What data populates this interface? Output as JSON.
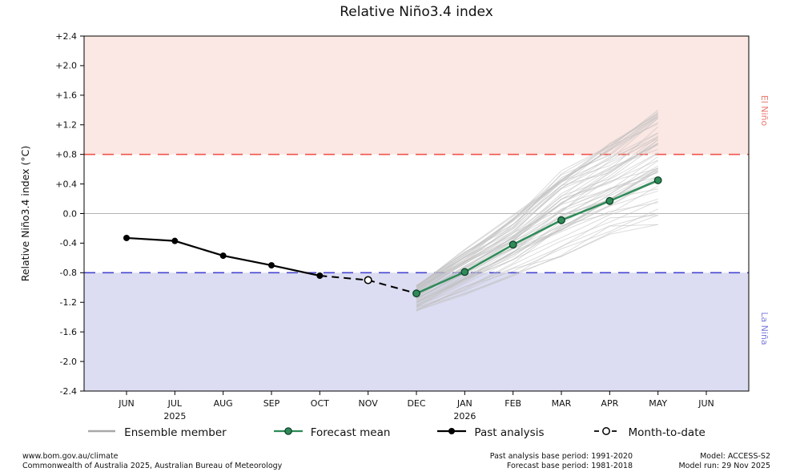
{
  "title": "Relative Niño3.4 index",
  "y_axis": {
    "label": "Relative Niño3.4 index (°C)",
    "tick_labels": [
      "+2.4",
      "+2.0",
      "+1.6",
      "+1.2",
      "+0.8",
      "+0.4",
      "0.0",
      "-0.4",
      "-0.8",
      "-1.2",
      "-1.6",
      "-2.0",
      "-2.4"
    ],
    "min": -2.4,
    "max": 2.4,
    "step": 0.4
  },
  "x_axis": {
    "month_labels": [
      "JUN",
      "JUL",
      "AUG",
      "SEP",
      "OCT",
      "NOV",
      "DEC",
      "JAN",
      "FEB",
      "MAR",
      "APR",
      "MAY",
      "JUN"
    ],
    "year_labels": [
      {
        "text": "2025",
        "month_index": 1
      },
      {
        "text": "2026",
        "month_index": 7
      }
    ]
  },
  "regions": {
    "el_nino": {
      "label": "El Niño",
      "threshold": 0.8,
      "fill": "#fbe7e3",
      "line": "#f0544c",
      "label_color": "#e8776b"
    },
    "la_nina": {
      "label": "La Niña",
      "threshold": -0.8,
      "fill": "#dcddf2",
      "line": "#4646d2",
      "label_color": "#7b7bda"
    }
  },
  "chart_data": {
    "type": "line",
    "title": "Relative Niño3.4 index",
    "ylabel": "Relative Niño3.4 index (°C)",
    "ylim": [
      -2.4,
      2.4
    ],
    "x_categories": [
      "JUN",
      "JUL",
      "AUG",
      "SEP",
      "OCT",
      "NOV",
      "DEC",
      "JAN",
      "FEB",
      "MAR",
      "APR",
      "MAY",
      "JUN"
    ],
    "zero_line_color": "#b3b3b3",
    "series": [
      {
        "name": "Past analysis",
        "months": [
          "JUN",
          "JUL",
          "AUG",
          "SEP",
          "OCT"
        ],
        "month_indices": [
          0,
          1,
          2,
          3,
          4
        ],
        "values": [
          -0.33,
          -0.37,
          -0.57,
          -0.7,
          -0.84
        ],
        "color": "#000000",
        "style": "solid-line-filled-markers"
      },
      {
        "name": "Month-to-date",
        "months": [
          "NOV"
        ],
        "month_indices": [
          5
        ],
        "values": [
          -0.9
        ],
        "color": "#000000",
        "style": "dashed-connector-open-marker"
      },
      {
        "name": "Forecast mean",
        "months": [
          "DEC",
          "JAN",
          "FEB",
          "MAR",
          "APR",
          "MAY"
        ],
        "month_indices": [
          6,
          7,
          8,
          9,
          10,
          11
        ],
        "values": [
          -1.08,
          -0.79,
          -0.42,
          -0.09,
          0.17,
          0.45
        ],
        "color": "#2e8b57",
        "marker_edge": "#0b3b24",
        "style": "solid-line-filled-markers"
      }
    ],
    "ensemble": {
      "name": "Ensemble member",
      "color": "#c0c0c0",
      "count": 60,
      "month_indices": [
        6,
        7,
        8,
        9,
        10,
        11
      ],
      "envelope_min": [
        -1.36,
        -1.12,
        -0.85,
        -0.58,
        -0.32,
        -0.15
      ],
      "envelope_max": [
        -0.93,
        -0.47,
        -0.02,
        0.58,
        0.95,
        1.4
      ],
      "seed": 13
    }
  },
  "legend": {
    "items": [
      {
        "label": "Ensemble member"
      },
      {
        "label": "Forecast mean"
      },
      {
        "label": "Past analysis"
      },
      {
        "label": "Month-to-date"
      }
    ]
  },
  "footer": {
    "left_line1": "www.bom.gov.au/climate",
    "left_line2": "Commonwealth of Australia 2025, Australian Bureau of Meteorology",
    "mid_line1": "Past analysis base period: 1991-2020",
    "mid_line2": "Forecast base period: 1981-2018",
    "right_line1": "Model: ACCESS-S2",
    "right_line2": "Model run: 29 Nov 2025"
  }
}
